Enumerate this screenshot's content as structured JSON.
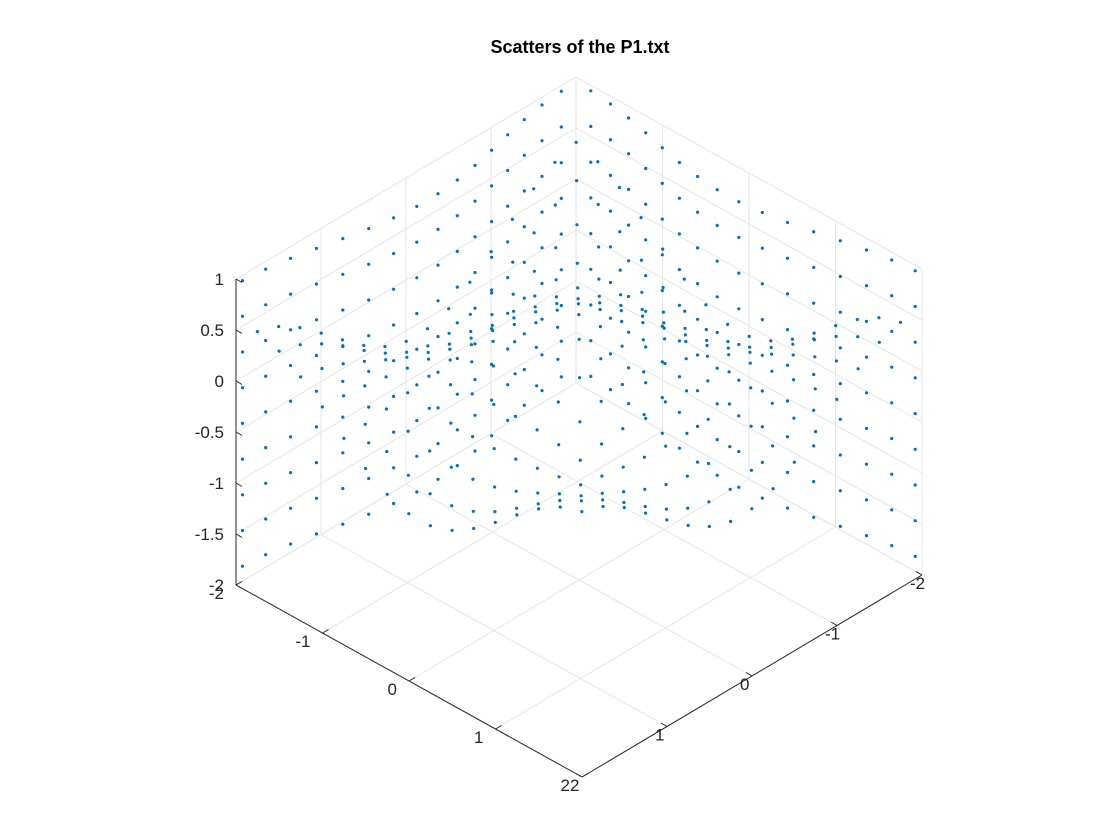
{
  "chart_data": {
    "type": "scatter",
    "title": "Scatters of the P1.txt",
    "xlabel": "",
    "ylabel": "",
    "zlabel": "",
    "xlim": [
      -2,
      2
    ],
    "ylim": [
      -2,
      2
    ],
    "zlim": [
      -2,
      1
    ],
    "view": "3d-isometric",
    "grid": true,
    "box": "back-planes",
    "marker_color": "#0072BD",
    "x_ticks": [
      "-2",
      "-1",
      "0",
      "1",
      "2"
    ],
    "y_ticks": [
      "-2",
      "-1",
      "0",
      "1",
      "2"
    ],
    "z_ticks": [
      "-2",
      "-1.5",
      "-1",
      "-0.5",
      "0",
      "0.5",
      "1"
    ],
    "surfaces": [
      {
        "name": "",
        "orientation": "z = f(x, y)",
        "function": "0.5*cos(pi*x/2)*cos(pi*y/2)",
        "x": [
          -1.875,
          -1.625,
          -1.375,
          -1.125,
          -0.875,
          -0.625,
          -0.375,
          -0.125,
          0.125,
          0.375,
          0.625,
          0.875,
          1.125,
          1.375,
          1.625,
          1.875
        ],
        "y": [
          -1.875,
          -1.625,
          -1.375,
          -1.125,
          -0.875,
          -0.625,
          -0.375,
          -0.125,
          0.125,
          0.375,
          0.625,
          0.875,
          1.125,
          1.375,
          1.625,
          1.875
        ]
      },
      {
        "name": "",
        "orientation": "x = f(y, z)",
        "function": "-1.9 + 0.15*cos(pi*y/2)",
        "y": [
          -1.875,
          -1.625,
          -1.375,
          -1.125,
          -0.875,
          -0.625,
          -0.375,
          -0.125,
          0.125,
          0.375,
          0.625,
          0.875,
          1.125,
          1.375,
          1.625,
          1.875
        ],
        "z": [
          -1.9,
          -1.55,
          -1.2,
          -0.85,
          -0.5,
          -0.15,
          0.2,
          0.55,
          0.9
        ]
      },
      {
        "name": "",
        "orientation": "y = f(x, z)",
        "function": "-1.9 + 0.15*cos(pi*x/2)",
        "x": [
          -1.875,
          -1.625,
          -1.375,
          -1.125,
          -0.875,
          -0.625,
          -0.375,
          -0.125,
          0.125,
          0.375,
          0.625,
          0.875,
          1.125,
          1.375,
          1.625,
          1.875
        ],
        "z": [
          -1.9,
          -1.55,
          -1.2,
          -0.85,
          -0.5,
          -0.15,
          0.2,
          0.55,
          0.9
        ]
      }
    ]
  }
}
